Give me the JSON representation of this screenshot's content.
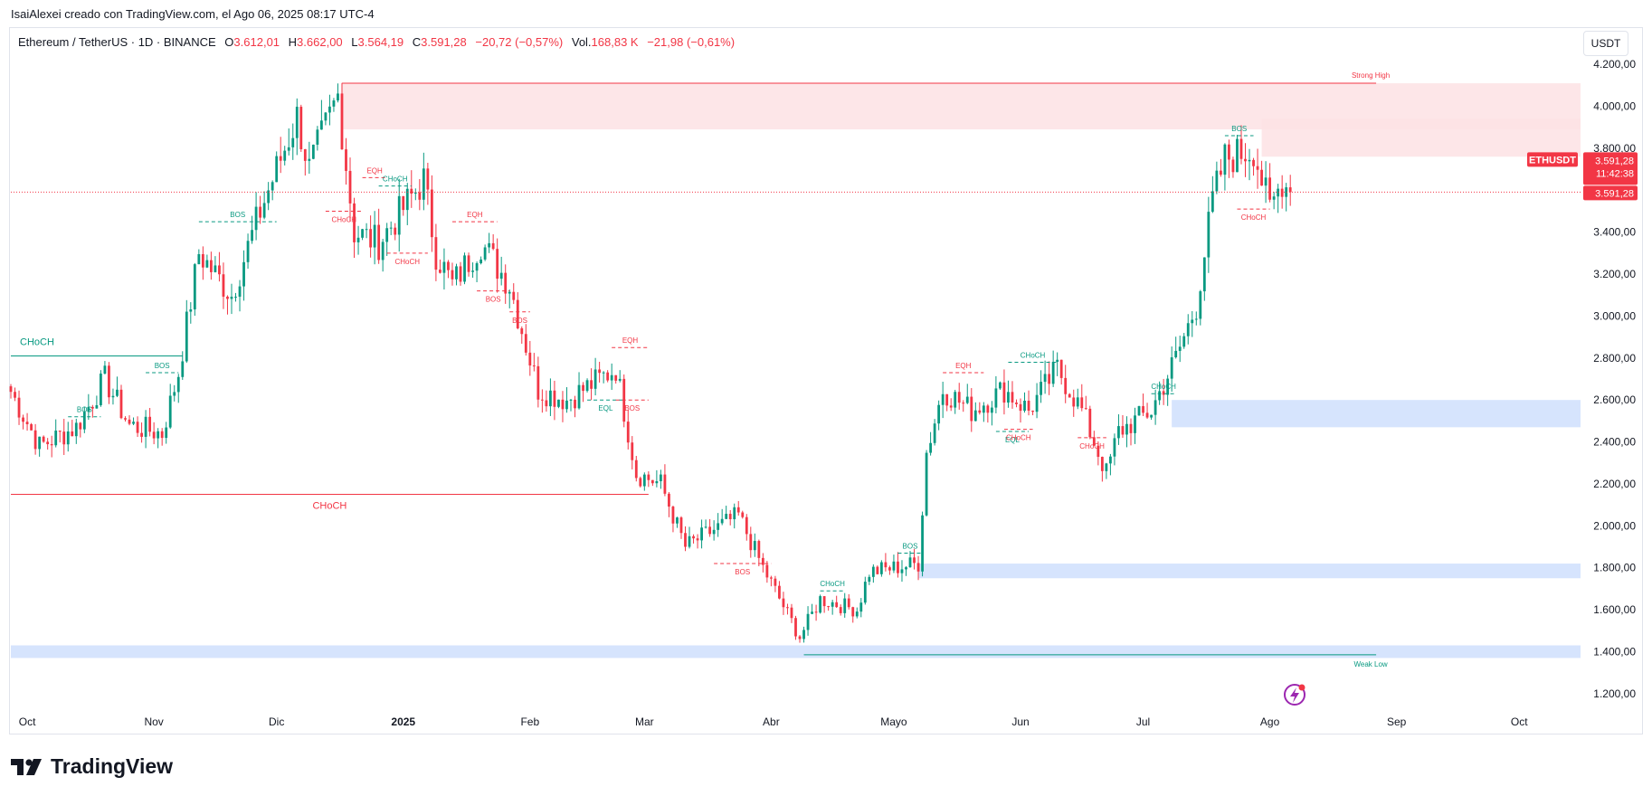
{
  "caption": "IsaiAlexei creado con TradingView.com, el Ago 06, 2025 08:17 UTC-4",
  "legend": {
    "symbol": "Ethereum / TetherUS · 1D · BINANCE",
    "o_label": "O",
    "o_value": "3.612,01",
    "h_label": "H",
    "h_value": "3.662,00",
    "l_label": "L",
    "l_value": "3.564,19",
    "c_label": "C",
    "c_value": "3.591,28",
    "change": "−20,72 (−0,57%)",
    "vol_label": "Vol.",
    "vol_value": "168,83 K",
    "vol_change": "−21,98 (−0,61%)"
  },
  "currency_button": "USDT",
  "price_tag": {
    "ticker": "ETHUSDT",
    "price": "3.591,28",
    "countdown": "11:42:38",
    "last": "3.591,28"
  },
  "brand": "TradingView",
  "colors": {
    "up": "#089981",
    "down": "#f23645",
    "supply_zone": "#fde2e4",
    "demand_zone": "#d6e4fd",
    "grid": "#e0e3eb"
  },
  "chart_data": {
    "type": "candlestick",
    "y_ticks": [
      {
        "v": 4200,
        "label": "4.200,00"
      },
      {
        "v": 4000,
        "label": "4.000,00"
      },
      {
        "v": 3800,
        "label": "3.800,00"
      },
      {
        "v": 3400,
        "label": "3.400,00"
      },
      {
        "v": 3200,
        "label": "3.200,00"
      },
      {
        "v": 3000,
        "label": "3.000,00"
      },
      {
        "v": 2800,
        "label": "2.800,00"
      },
      {
        "v": 2600,
        "label": "2.600,00"
      },
      {
        "v": 2400,
        "label": "2.400,00"
      },
      {
        "v": 2200,
        "label": "2.200,00"
      },
      {
        "v": 2000,
        "label": "2.000,00"
      },
      {
        "v": 1800,
        "label": "1.800,00"
      },
      {
        "v": 1600,
        "label": "1.600,00"
      },
      {
        "v": 1400,
        "label": "1.400,00"
      },
      {
        "v": 1200,
        "label": "1.200,00"
      }
    ],
    "x_ticks": [
      {
        "d": "2024-10-01",
        "label": "Oct"
      },
      {
        "d": "2024-11-01",
        "label": "Nov"
      },
      {
        "d": "2024-12-01",
        "label": "Dic"
      },
      {
        "d": "2025-01-01",
        "label": "2025",
        "bold": true
      },
      {
        "d": "2025-02-01",
        "label": "Feb"
      },
      {
        "d": "2025-03-01",
        "label": "Mar"
      },
      {
        "d": "2025-04-01",
        "label": "Abr"
      },
      {
        "d": "2025-05-01",
        "label": "Mayo"
      },
      {
        "d": "2025-06-01",
        "label": "Jun"
      },
      {
        "d": "2025-07-01",
        "label": "Jul"
      },
      {
        "d": "2025-08-01",
        "label": "Ago"
      },
      {
        "d": "2025-09-01",
        "label": "Sep"
      },
      {
        "d": "2025-10-01",
        "label": "Oct"
      }
    ],
    "ylim": [
      1100,
      4300
    ],
    "x_range": [
      "2024-09-27",
      "2025-10-16"
    ],
    "anchors": [
      [
        "2024-09-27",
        2640
      ],
      [
        "2024-10-04",
        2380
      ],
      [
        "2024-10-13",
        2470
      ],
      [
        "2024-10-20",
        2700
      ],
      [
        "2024-10-26",
        2480
      ],
      [
        "2024-11-03",
        2440
      ],
      [
        "2024-11-07",
        2730
      ],
      [
        "2024-11-12",
        3300
      ],
      [
        "2024-11-20",
        3100
      ],
      [
        "2024-11-27",
        3500
      ],
      [
        "2024-12-06",
        3950
      ],
      [
        "2024-12-09",
        3700
      ],
      [
        "2024-12-16",
        4050
      ],
      [
        "2024-12-20",
        3400
      ],
      [
        "2024-12-26",
        3350
      ],
      [
        "2025-01-06",
        3650
      ],
      [
        "2025-01-09",
        3300
      ],
      [
        "2025-01-13",
        3150
      ],
      [
        "2025-01-20",
        3350
      ],
      [
        "2025-01-27",
        3150
      ],
      [
        "2025-02-03",
        2650
      ],
      [
        "2025-02-10",
        2600
      ],
      [
        "2025-02-22",
        2750
      ],
      [
        "2025-02-27",
        2250
      ],
      [
        "2025-03-05",
        2200
      ],
      [
        "2025-03-11",
        1900
      ],
      [
        "2025-03-24",
        2050
      ],
      [
        "2025-03-30",
        1800
      ],
      [
        "2025-04-08",
        1470
      ],
      [
        "2025-04-13",
        1650
      ],
      [
        "2025-04-22",
        1600
      ],
      [
        "2025-04-25",
        1780
      ],
      [
        "2025-05-07",
        1820
      ],
      [
        "2025-05-09",
        2350
      ],
      [
        "2025-05-13",
        2650
      ],
      [
        "2025-05-20",
        2550
      ],
      [
        "2025-05-28",
        2650
      ],
      [
        "2025-06-03",
        2550
      ],
      [
        "2025-06-10",
        2750
      ],
      [
        "2025-06-16",
        2550
      ],
      [
        "2025-06-22",
        2250
      ],
      [
        "2025-06-25",
        2450
      ],
      [
        "2025-07-03",
        2550
      ],
      [
        "2025-07-09",
        2800
      ],
      [
        "2025-07-14",
        3050
      ],
      [
        "2025-07-18",
        3550
      ],
      [
        "2025-07-21",
        3750
      ],
      [
        "2025-07-28",
        3800
      ],
      [
        "2025-08-01",
        3500
      ],
      [
        "2025-08-04",
        3650
      ],
      [
        "2025-08-06",
        3591.28
      ]
    ],
    "last_price": 3591.28,
    "zones": [
      {
        "kind": "supply",
        "from": "2024-12-17",
        "to": "2025-10-16",
        "top": 4110,
        "bottom": 3890
      },
      {
        "kind": "supply",
        "from": "2025-07-30",
        "to": "2025-10-16",
        "top": 3940,
        "bottom": 3760
      },
      {
        "kind": "demand",
        "from": "2025-07-08",
        "to": "2025-10-16",
        "top": 2600,
        "bottom": 2470
      },
      {
        "kind": "demand",
        "from": "2025-05-07",
        "to": "2025-10-16",
        "top": 1820,
        "bottom": 1750
      },
      {
        "kind": "demand",
        "from": "2024-09-27",
        "to": "2025-10-16",
        "top": 1430,
        "bottom": 1370
      }
    ],
    "levels": [
      {
        "label": "Strong High",
        "color": "#f23645",
        "v": 4110,
        "from": "2024-12-17",
        "to": "2025-08-27"
      },
      {
        "label": "Weak Low",
        "color": "#089981",
        "v": 1385,
        "from": "2025-04-09",
        "to": "2025-08-27"
      },
      {
        "label": "CHoCH",
        "color": "#089981",
        "v": 2810,
        "from": "2024-09-27",
        "to": "2024-11-08"
      },
      {
        "label": "CHoCH",
        "color": "#f23645",
        "v": 2150,
        "from": "2024-09-27",
        "to": "2025-03-02"
      }
    ],
    "markers": [
      {
        "label": "BOS",
        "color": "#089981",
        "from": "2024-10-11",
        "to": "2024-10-19",
        "v": 2520
      },
      {
        "label": "BOS",
        "color": "#089981",
        "from": "2024-10-30",
        "to": "2024-11-07",
        "v": 2730
      },
      {
        "label": "BOS",
        "color": "#089981",
        "from": "2024-11-12",
        "to": "2024-12-01",
        "v": 3450
      },
      {
        "label": "EQH",
        "color": "#f23645",
        "from": "2024-12-22",
        "to": "2024-12-28",
        "v": 3660
      },
      {
        "label": "CHoCH",
        "color": "#089981",
        "from": "2024-12-26",
        "to": "2025-01-03",
        "v": 3620
      },
      {
        "label": "CHoCH",
        "color": "#f23645",
        "from": "2024-12-13",
        "to": "2024-12-22",
        "v": 3500
      },
      {
        "label": "CHoCH",
        "color": "#f23645",
        "from": "2024-12-28",
        "to": "2025-01-07",
        "v": 3300
      },
      {
        "label": "EQH",
        "color": "#f23645",
        "from": "2025-01-13",
        "to": "2025-01-24",
        "v": 3450
      },
      {
        "label": "BOS",
        "color": "#f23645",
        "from": "2025-01-19",
        "to": "2025-01-27",
        "v": 3120
      },
      {
        "label": "BOS",
        "color": "#f23645",
        "from": "2025-01-27",
        "to": "2025-02-01",
        "v": 3020
      },
      {
        "label": "EQH",
        "color": "#f23645",
        "from": "2025-02-21",
        "to": "2025-03-02",
        "v": 2850
      },
      {
        "label": "EQL",
        "color": "#089981",
        "from": "2025-02-15",
        "to": "2025-02-24",
        "v": 2600
      },
      {
        "label": "BOS",
        "color": "#f23645",
        "from": "2025-02-22",
        "to": "2025-03-02",
        "v": 2600
      },
      {
        "label": "BOS",
        "color": "#f23645",
        "from": "2025-03-18",
        "to": "2025-04-01",
        "v": 1820
      },
      {
        "label": "CHoCH",
        "color": "#089981",
        "from": "2025-04-13",
        "to": "2025-04-19",
        "v": 1690
      },
      {
        "label": "BOS",
        "color": "#089981",
        "from": "2025-05-02",
        "to": "2025-05-08",
        "v": 1870
      },
      {
        "label": "EQH",
        "color": "#f23645",
        "from": "2025-05-13",
        "to": "2025-05-23",
        "v": 2730
      },
      {
        "label": "EQL",
        "color": "#089981",
        "from": "2025-05-26",
        "to": "2025-06-03",
        "v": 2450
      },
      {
        "label": "CHoCH",
        "color": "#f23645",
        "from": "2025-05-28",
        "to": "2025-06-04",
        "v": 2460
      },
      {
        "label": "CHoCH",
        "color": "#089981",
        "from": "2025-05-29",
        "to": "2025-06-10",
        "v": 2780
      },
      {
        "label": "CHoCH",
        "color": "#f23645",
        "from": "2025-06-15",
        "to": "2025-06-22",
        "v": 2420
      },
      {
        "label": "CHoCH",
        "color": "#089981",
        "from": "2025-07-03",
        "to": "2025-07-09",
        "v": 2630
      },
      {
        "label": "BOS",
        "color": "#089981",
        "from": "2025-07-21",
        "to": "2025-07-28",
        "v": 3860
      },
      {
        "label": "CHoCH",
        "color": "#f23645",
        "from": "2025-07-24",
        "to": "2025-08-01",
        "v": 3510
      }
    ]
  }
}
